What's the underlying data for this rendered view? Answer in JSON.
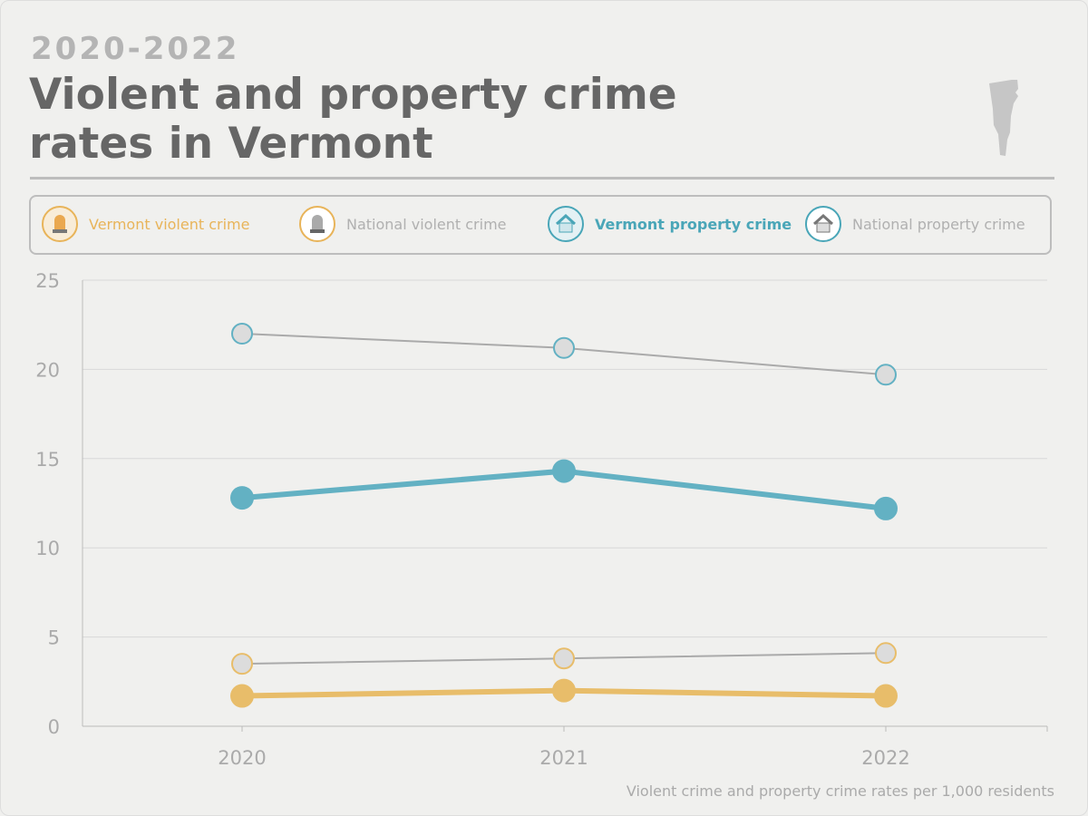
{
  "header": {
    "years": "2020-2022",
    "title_line1": "Violent and property crime",
    "title_line2": "rates in Vermont"
  },
  "colors": {
    "vermont_violent": "#e8bd6a",
    "national_violent": "#aaaaaa",
    "vermont_property": "#63b1c3",
    "national_property": "#aaaaaa",
    "marker_fill_national": "#dcdcdc"
  },
  "legend": [
    {
      "label": "Vermont violent crime",
      "icon": "siren-icon",
      "color": "#e8b45a"
    },
    {
      "label": "National violent crime",
      "icon": "siren-icon",
      "color": "#b0b0b0"
    },
    {
      "label": "Vermont property crime",
      "icon": "house-icon",
      "color": "#4aa6b8"
    },
    {
      "label": "National property crime",
      "icon": "house-icon",
      "color": "#b0b0b0"
    }
  ],
  "footnote": "Violent crime and property crime rates per 1,000 residents",
  "chart_data": {
    "type": "line",
    "x": [
      "2020",
      "2021",
      "2022"
    ],
    "xlabel": "",
    "ylabel": "",
    "ylim": [
      0,
      25
    ],
    "yticks": [
      "0",
      "5",
      "10",
      "15",
      "20",
      "25"
    ],
    "grid": true,
    "series": [
      {
        "name": "National property crime",
        "values": [
          22.0,
          21.2,
          19.7
        ]
      },
      {
        "name": "Vermont property crime",
        "values": [
          12.8,
          14.3,
          12.2
        ]
      },
      {
        "name": "National violent crime",
        "values": [
          3.5,
          3.8,
          4.1
        ]
      },
      {
        "name": "Vermont violent crime",
        "values": [
          1.7,
          2.0,
          1.7
        ]
      }
    ]
  }
}
